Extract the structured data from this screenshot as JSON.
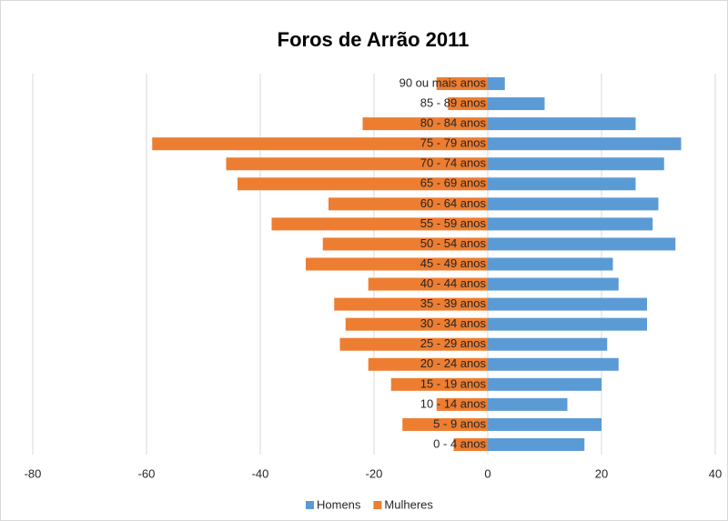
{
  "chart_data": {
    "type": "bar",
    "orientation": "horizontal",
    "title": "Foros de Arrão 2011",
    "categories": [
      "0 - 4 anos",
      "5 - 9 anos",
      "10 - 14 anos",
      "15 - 19 anos",
      "20 - 24 anos",
      "25 - 29 anos",
      "30 - 34 anos",
      "35 - 39 anos",
      "40 - 44 anos",
      "45 - 49 anos",
      "50 - 54 anos",
      "55 - 59 anos",
      "60 - 64 anos",
      "65 - 69 anos",
      "70 - 74 anos",
      "75 - 79 anos",
      "80 - 84 anos",
      "85 - 89 anos",
      "90 ou mais anos"
    ],
    "series": [
      {
        "name": "Homens",
        "color": "#5b9bd5",
        "values": [
          17,
          20,
          14,
          20,
          23,
          21,
          28,
          28,
          23,
          22,
          33,
          29,
          30,
          26,
          31,
          34,
          26,
          10,
          3
        ]
      },
      {
        "name": "Mulheres",
        "color": "#ed7d31",
        "values": [
          -6,
          -15,
          -9,
          -17,
          -21,
          -26,
          -25,
          -27,
          -21,
          -32,
          -29,
          -38,
          -28,
          -44,
          -46,
          -59,
          -22,
          -7,
          -9
        ]
      }
    ],
    "xlim": [
      -80,
      40
    ],
    "xticks": [
      -80,
      -60,
      -40,
      -20,
      0,
      20,
      40
    ],
    "grid": true,
    "legend": "bottom"
  }
}
